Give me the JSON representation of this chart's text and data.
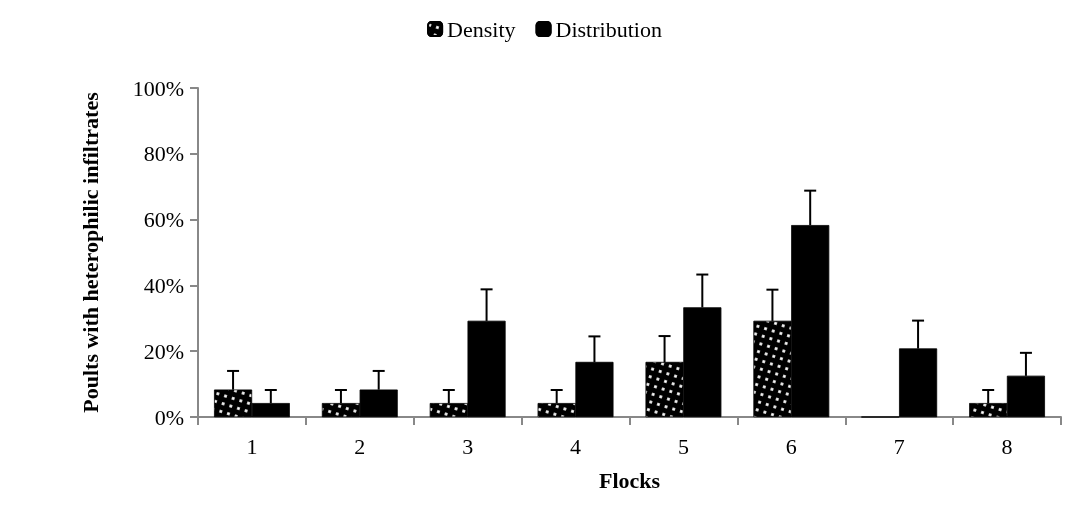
{
  "chart_data": {
    "type": "bar",
    "xlabel": "Flocks",
    "ylabel": "Poults with heterophilic infiltrates",
    "categories": [
      "1",
      "2",
      "3",
      "4",
      "5",
      "6",
      "7",
      "8"
    ],
    "series": [
      {
        "name": "Density",
        "color": "#000000",
        "values": [
          8.3,
          4.2,
          4.2,
          4.2,
          16.7,
          29.2,
          0,
          4.2
        ],
        "errors": [
          5.7,
          4,
          4,
          4,
          7.9,
          9.5,
          null,
          4
        ]
      },
      {
        "name": "Distribution",
        "color": "#000000",
        "values": [
          4.2,
          8.3,
          29.2,
          16.7,
          33.3,
          58.3,
          20.8,
          12.5
        ],
        "errors": [
          4,
          5.7,
          9.6,
          7.8,
          10,
          10.5,
          8.5,
          7
        ]
      }
    ],
    "ylim": [
      0,
      100
    ],
    "yticks": [
      {
        "value": 0,
        "label": "0%"
      },
      {
        "value": 20,
        "label": "20%"
      },
      {
        "value": 40,
        "label": "40%"
      },
      {
        "value": 60,
        "label": "60%"
      },
      {
        "value": 80,
        "label": "80%"
      },
      {
        "value": 100,
        "label": "100%"
      }
    ],
    "grid": false,
    "legend": "top"
  }
}
